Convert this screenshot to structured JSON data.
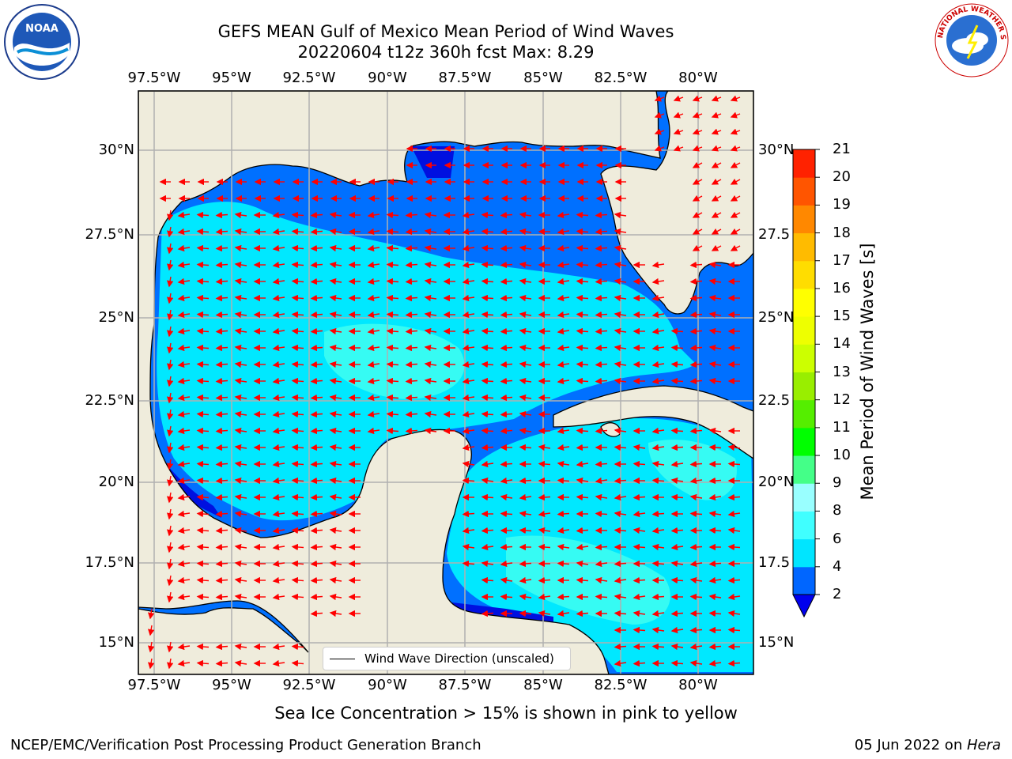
{
  "title": {
    "line1": "GEFS MEAN Gulf of Mexico Mean Period of Wind Waves",
    "line2": "20220604 t12z 360h fcst   Max: 8.29"
  },
  "map": {
    "lon_labels": [
      "97.5°W",
      "95°W",
      "92.5°W",
      "90°W",
      "87.5°W",
      "85°W",
      "82.5°W",
      "80°W"
    ],
    "lat_labels_left": [
      "30°N",
      "27.5°N",
      "25°N",
      "22.5°N",
      "20°N",
      "17.5°N",
      "15°N"
    ],
    "lat_labels_right": [
      "30°N",
      "27.5",
      "25°N",
      "22.5",
      "20°N",
      "17.5",
      "15°N"
    ],
    "lon_range": [
      -98,
      -78.3
    ],
    "lat_range": [
      14,
      31.5
    ],
    "colors": {
      "land": "#efecdc",
      "grid": "#b0b0b0",
      "arrow": "#ff0000",
      "coast": "#000000"
    }
  },
  "legend": {
    "label": "Wind Wave Direction (unscaled)"
  },
  "colorbar": {
    "label": "Mean Period of Wind Waves [s]",
    "ticks": [
      "2",
      "4",
      "6",
      "8",
      "9",
      "10",
      "11",
      "12",
      "13",
      "14",
      "15",
      "16",
      "17",
      "18",
      "19",
      "20",
      "21"
    ],
    "colors": [
      "#0066ff",
      "#00e5ff",
      "#40ffff",
      "#99ffff",
      "#44ff88",
      "#00ff00",
      "#55ee00",
      "#99ee00",
      "#ccff00",
      "#eeff00",
      "#ffff00",
      "#ffdd00",
      "#ffbb00",
      "#ff8800",
      "#ff5500",
      "#ff2200"
    ],
    "under_color": "#0000ee"
  },
  "seaice_note": "Sea Ice Concentration > 15% is shown in pink to yellow",
  "footer": {
    "left": "NCEP/EMC/Verification Post Processing Product Generation Branch",
    "date": "05 Jun 2022 on ",
    "machine": "Hera"
  },
  "logos": {
    "noaa_text": "NOAA",
    "nws_text": "NATIONAL WEATHER SERVICE"
  }
}
